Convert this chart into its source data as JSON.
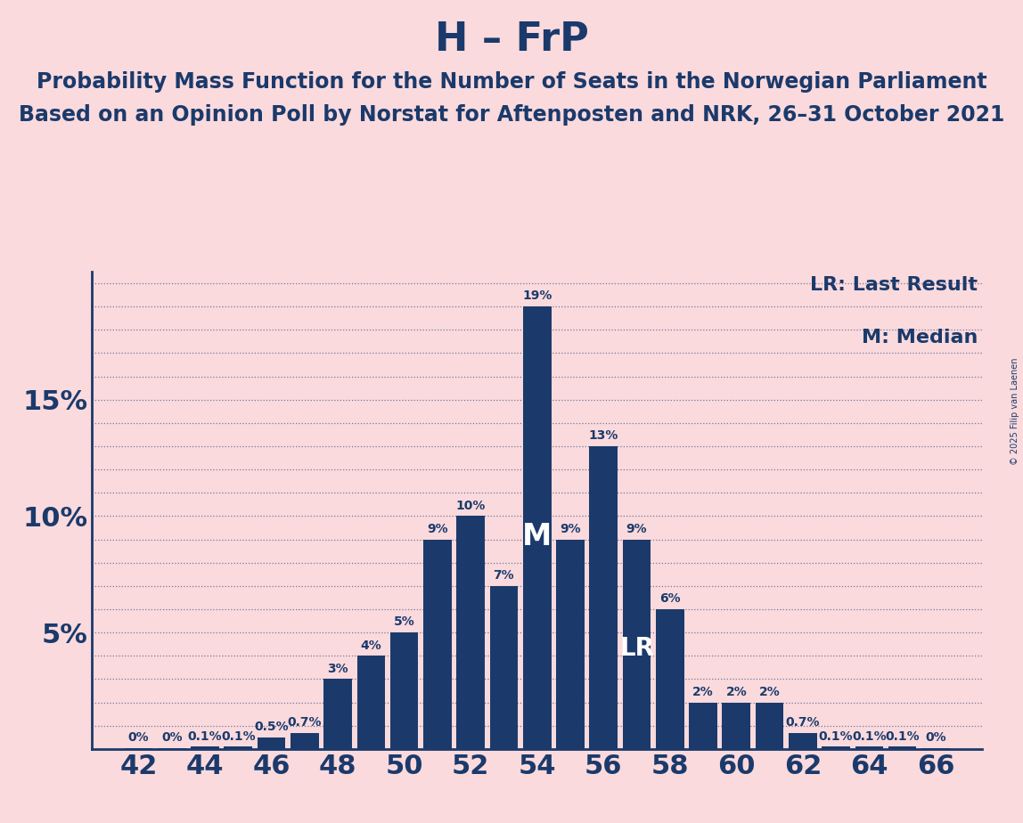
{
  "title": "H – FrP",
  "subtitle1": "Probability Mass Function for the Number of Seats in the Norwegian Parliament",
  "subtitle2": "Based on an Opinion Poll by Norstat for Aftenposten and NRK, 26–31 October 2021",
  "copyright": "© 2025 Filip van Laenen",
  "legend_lr": "LR: Last Result",
  "legend_m": "M: Median",
  "background_color": "#FADADD",
  "bar_color": "#1B3A6B",
  "title_color": "#1B3A6B",
  "categories": [
    42,
    43,
    44,
    45,
    46,
    47,
    48,
    49,
    50,
    51,
    52,
    53,
    54,
    55,
    56,
    57,
    58,
    59,
    60,
    61,
    62,
    63,
    64,
    65,
    66
  ],
  "values": [
    0.05,
    0.05,
    0.1,
    0.1,
    0.5,
    0.7,
    3.0,
    4.0,
    5.0,
    9.0,
    10.0,
    7.0,
    19.0,
    9.0,
    13.0,
    9.0,
    6.0,
    2.0,
    2.0,
    2.0,
    0.7,
    0.1,
    0.1,
    0.1,
    0.05
  ],
  "labels": [
    "0%",
    "0%",
    "0.1%",
    "0.1%",
    "0.5%",
    "0.7%",
    "3%",
    "4%",
    "5%",
    "9%",
    "10%",
    "7%",
    "19%",
    "9%",
    "13%",
    "9%",
    "6%",
    "2%",
    "2%",
    "2%",
    "0.7%",
    "0.1%",
    "0.1%",
    "0.1%",
    "0%"
  ],
  "show_label": [
    true,
    true,
    true,
    true,
    true,
    true,
    true,
    true,
    true,
    true,
    true,
    true,
    true,
    true,
    true,
    true,
    true,
    true,
    true,
    true,
    true,
    true,
    true,
    true,
    true
  ],
  "median_seat": 54,
  "lr_seat": 57,
  "xtick_positions": [
    42,
    44,
    46,
    48,
    50,
    52,
    54,
    56,
    58,
    60,
    62,
    64,
    66
  ],
  "ylim": [
    0,
    20.5
  ],
  "grid_color": "#1B3A6B",
  "title_fontsize": 32,
  "subtitle_fontsize": 17,
  "axis_fontsize": 22,
  "label_fontsize": 10
}
